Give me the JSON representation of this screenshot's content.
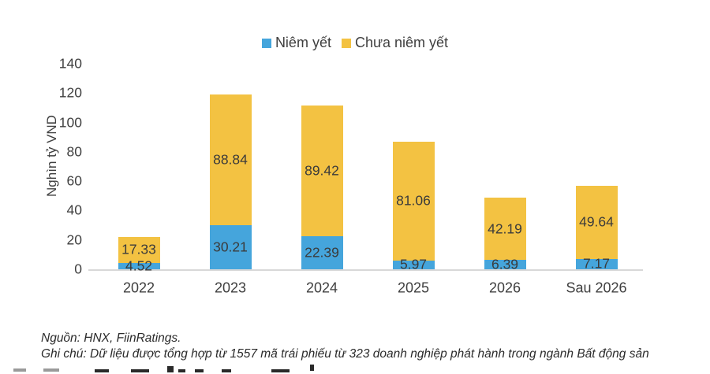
{
  "chart_data": {
    "type": "bar",
    "stacked": true,
    "title": "",
    "categories": [
      "2022",
      "2023",
      "2024",
      "2025",
      "2026",
      "Sau 2026"
    ],
    "series": [
      {
        "name": "Niêm yết",
        "color": "#45a5dc",
        "values": [
          4.52,
          30.21,
          22.39,
          5.97,
          6.39,
          7.17
        ]
      },
      {
        "name": "Chưa niêm yết",
        "color": "#f3c242",
        "values": [
          17.33,
          88.84,
          89.42,
          81.06,
          42.19,
          49.64
        ]
      }
    ],
    "xlabel": "",
    "ylabel": "Nghìn tỷ VND",
    "yticks": [
      0,
      20,
      40,
      60,
      80,
      100,
      120,
      140
    ],
    "ylim": [
      0,
      140
    ],
    "grid": false,
    "legend_position": "top-center",
    "data_labels": true,
    "label_color": "#3b3b3b",
    "axis_line_color": "#d8d8d8"
  },
  "footer": {
    "source": "Nguồn: HNX, FiinRatings.",
    "note": "Ghi chú: Dữ liệu được tổng hợp từ 1557 mã trái phiếu từ 323 doanh nghiệp phát hành trong ngành Bất động sản"
  }
}
